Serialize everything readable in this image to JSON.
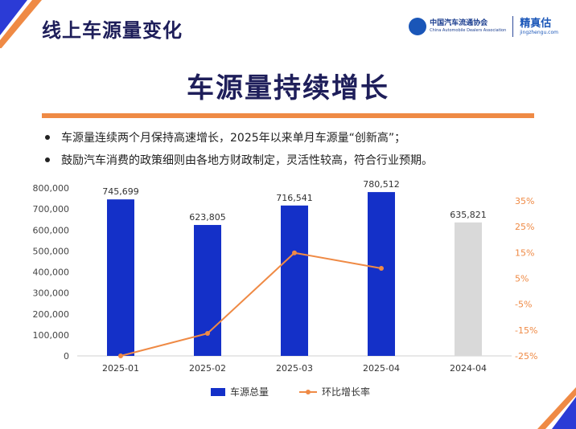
{
  "header": {
    "title": "线上车源量变化",
    "logo_cada_cn": "中国汽车流通协会",
    "logo_cada_en": "China Automobile Dealers Association",
    "logo_jzg_cn": "精真估",
    "logo_jzg_en": "jingzhengu.com"
  },
  "main_title": "车源量持续增长",
  "bullets": [
    "车源量连续两个月保持高速增长，2025年以来单月车源量“创新高”；",
    "鼓励汽车消费的政策细则由各地方财政制定，灵活性较高，符合行业预期。"
  ],
  "colors": {
    "bar_main": "#1430c8",
    "bar_compare": "#d9d9d9",
    "line": "#ef8a45",
    "accent_rule": "#ef8a45",
    "title_navy": "#1e1e5a"
  },
  "chart_data": {
    "type": "bar",
    "categories": [
      "2025-01",
      "2025-02",
      "2025-03",
      "2025-04",
      "2024-04"
    ],
    "series": [
      {
        "name": "车源总量",
        "type": "bar",
        "axis": "left",
        "values": [
          745699,
          623805,
          716541,
          780512,
          635821
        ],
        "labels": [
          "745,699",
          "623,805",
          "716,541",
          "780,512",
          "635,821"
        ]
      },
      {
        "name": "环比增长率",
        "type": "line",
        "axis": "right",
        "values": [
          -25,
          -16.3,
          14.9,
          8.9,
          null
        ]
      }
    ],
    "left_axis": {
      "min": 0,
      "max": 800000,
      "ticks": [
        "0",
        "100,000",
        "200,000",
        "300,000",
        "400,000",
        "500,000",
        "600,000",
        "700,000",
        "800,000"
      ],
      "tick_values": [
        0,
        100000,
        200000,
        300000,
        400000,
        500000,
        600000,
        700000,
        800000
      ]
    },
    "right_axis": {
      "min": -25,
      "max": 40,
      "ticks": [
        "-25%",
        "-15%",
        "-5%",
        "5%",
        "15%",
        "25%",
        "35%"
      ],
      "tick_values": [
        -25,
        -15,
        -5,
        5,
        15,
        25,
        35
      ]
    },
    "legend_position": "bottom",
    "grid": false
  }
}
